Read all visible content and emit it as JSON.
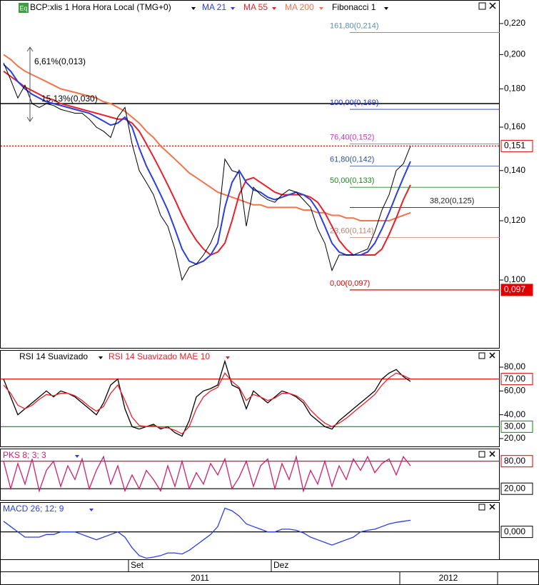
{
  "chart_data": [
    {
      "type": "line",
      "badge": "Eq",
      "title": "BCP:xlis 1 Hora Hora Local (TMG+0)",
      "log": true,
      "categories": [
        null,
        null,
        null,
        null,
        null,
        null,
        null,
        null,
        null,
        null,
        null,
        null,
        null,
        null,
        null,
        null,
        null,
        null,
        "Set",
        null,
        null,
        null,
        null,
        null,
        null,
        null,
        null,
        null,
        null,
        null,
        null,
        null,
        null,
        null,
        null,
        null,
        null,
        null,
        "Dez",
        null,
        null,
        null,
        null,
        null,
        null,
        null,
        null,
        null,
        null,
        null,
        null,
        null,
        null,
        null,
        null,
        null,
        null,
        null
      ],
      "x_groups": [
        "2011",
        "2012"
      ],
      "values": [
        0.195,
        0.185,
        0.175,
        0.182,
        0.172,
        0.17,
        0.172,
        0.171,
        0.169,
        0.168,
        0.167,
        0.167,
        0.164,
        0.16,
        0.158,
        0.155,
        0.165,
        0.17,
        0.152,
        0.14,
        0.135,
        0.13,
        0.122,
        0.118,
        0.11,
        0.1,
        0.104,
        0.105,
        0.108,
        0.112,
        0.118,
        0.145,
        0.14,
        0.139,
        0.118,
        0.133,
        0.13,
        0.128,
        0.127,
        0.13,
        0.132,
        0.131,
        0.128,
        0.125,
        0.117,
        0.112,
        0.103,
        0.108,
        0.108,
        0.108,
        0.109,
        0.11,
        0.116,
        0.124,
        0.13,
        0.14,
        0.143,
        0.151
      ],
      "color": "#000000",
      "series": [
        {
          "name": "MA 21",
          "color": "#2a3fe0",
          "values": [
            0.194,
            0.19,
            0.184,
            0.18,
            0.177,
            0.175,
            0.173,
            0.172,
            0.171,
            0.17,
            0.169,
            0.168,
            0.167,
            0.165,
            0.163,
            0.161,
            0.162,
            0.165,
            0.16,
            0.15,
            0.142,
            0.136,
            0.13,
            0.124,
            0.117,
            0.11,
            0.106,
            0.105,
            0.106,
            0.108,
            0.112,
            0.125,
            0.135,
            0.14,
            0.135,
            0.132,
            0.131,
            0.129,
            0.128,
            0.129,
            0.13,
            0.131,
            0.13,
            0.128,
            0.124,
            0.118,
            0.112,
            0.109,
            0.108,
            0.108,
            0.108,
            0.109,
            0.112,
            0.117,
            0.123,
            0.13,
            0.137,
            0.144
          ]
        },
        {
          "name": "MA 55",
          "color": "#e8202a",
          "values": [
            0.19,
            0.187,
            0.184,
            0.181,
            0.179,
            0.177,
            0.175,
            0.174,
            0.172,
            0.171,
            0.17,
            0.169,
            0.168,
            0.167,
            0.166,
            0.165,
            0.164,
            0.164,
            0.162,
            0.158,
            0.152,
            0.146,
            0.14,
            0.134,
            0.128,
            0.122,
            0.117,
            0.113,
            0.11,
            0.108,
            0.109,
            0.112,
            0.12,
            0.13,
            0.136,
            0.137,
            0.135,
            0.133,
            0.131,
            0.13,
            0.13,
            0.13,
            0.13,
            0.129,
            0.127,
            0.123,
            0.118,
            0.113,
            0.11,
            0.108,
            0.108,
            0.108,
            0.108,
            0.11,
            0.115,
            0.121,
            0.128,
            0.134
          ]
        },
        {
          "name": "MA 200",
          "color": "#f4734a",
          "values": [
            0.2,
            0.197,
            0.193,
            0.19,
            0.188,
            0.186,
            0.184,
            0.182,
            0.18,
            0.179,
            0.178,
            0.177,
            0.176,
            0.175,
            0.173,
            0.172,
            0.17,
            0.168,
            0.165,
            0.162,
            0.158,
            0.155,
            0.151,
            0.148,
            0.145,
            0.142,
            0.139,
            0.137,
            0.135,
            0.133,
            0.131,
            0.13,
            0.129,
            0.128,
            0.127,
            0.126,
            0.126,
            0.125,
            0.125,
            0.125,
            0.125,
            0.125,
            0.124,
            0.124,
            0.123,
            0.123,
            0.122,
            0.122,
            0.121,
            0.121,
            0.12,
            0.12,
            0.12,
            0.12,
            0.12,
            0.121,
            0.122,
            0.123
          ]
        }
      ],
      "fibonacci_name": "Fibonacci 1",
      "fibonacci": [
        {
          "label": "161,80(0,214)",
          "value": 0.214,
          "color": "#5d8fa3"
        },
        {
          "label": "100,00(0,169)",
          "value": 0.169,
          "color": "#1f2fc8"
        },
        {
          "label": "76,40(0,152)",
          "value": 0.152,
          "color": "#d030c8"
        },
        {
          "label": "61,80(0,142)",
          "value": 0.142,
          "color": "#2a50a0"
        },
        {
          "label": "50,00(0,133)",
          "value": 0.133,
          "color": "#1a8a1a"
        },
        {
          "label": "38,20(0,125)",
          "value": 0.125,
          "color": "#222222"
        },
        {
          "label": "23,60(0,114)",
          "value": 0.114,
          "color": "#c08070"
        },
        {
          "label": "0,00(0,097)",
          "value": 0.097,
          "color": "#e00000"
        }
      ],
      "annotations": [
        "6,61%(0,013)",
        "15,13%(0,030)"
      ],
      "hlines": [
        0.172
      ],
      "markers": [
        {
          "value": 0.151,
          "label": "0,151",
          "color": "#e00000"
        },
        {
          "value": 0.097,
          "label": "0,097",
          "color": "#e00000"
        }
      ],
      "ylim": [
        0.081,
        0.236
      ],
      "yticks": [
        {
          "value": 0.1,
          "label": "0,100"
        },
        {
          "value": 0.12,
          "label": "0,120"
        },
        {
          "value": 0.14,
          "label": "0,140"
        },
        {
          "value": 0.16,
          "label": "0,160"
        },
        {
          "value": 0.18,
          "label": "0,180"
        },
        {
          "value": 0.2,
          "label": "0,200"
        },
        {
          "value": 0.22,
          "label": "0,220"
        }
      ]
    },
    {
      "type": "line",
      "series": [
        {
          "name": "RSI 14 Suavizado",
          "color": "#000000",
          "values": [
            70,
            55,
            40,
            45,
            50,
            55,
            60,
            55,
            60,
            58,
            55,
            50,
            45,
            40,
            50,
            65,
            70,
            45,
            30,
            28,
            30,
            32,
            28,
            30,
            25,
            22,
            35,
            55,
            60,
            62,
            65,
            85,
            65,
            62,
            45,
            60,
            55,
            50,
            55,
            60,
            58,
            55,
            50,
            40,
            35,
            30,
            28,
            35,
            40,
            45,
            50,
            55,
            60,
            70,
            75,
            78,
            72,
            68
          ]
        },
        {
          "name": "RSI 14 Suavizado MAE 10",
          "color": "#e8202a",
          "values": [
            65,
            58,
            48,
            45,
            48,
            53,
            57,
            56,
            58,
            58,
            56,
            52,
            47,
            43,
            47,
            58,
            65,
            52,
            38,
            31,
            30,
            31,
            29,
            29,
            27,
            24,
            30,
            45,
            55,
            60,
            63,
            75,
            68,
            63,
            52,
            57,
            55,
            52,
            54,
            58,
            58,
            56,
            52,
            44,
            38,
            33,
            30,
            33,
            37,
            42,
            47,
            52,
            57,
            65,
            71,
            75,
            73,
            70
          ]
        }
      ],
      "levels": [
        {
          "value": 70,
          "label": "70,00",
          "color": "#d00000"
        },
        {
          "value": 30,
          "label": "30,00",
          "color": "#0a8a0a"
        }
      ],
      "ylim": [
        13.4,
        93.8
      ],
      "yticks": [
        {
          "value": 20,
          "label": "20,00"
        },
        {
          "value": 40,
          "label": "40,00"
        },
        {
          "value": 60,
          "label": "60,00"
        },
        {
          "value": 80,
          "label": "80,00"
        }
      ]
    },
    {
      "type": "line",
      "series": [
        {
          "name": "PKS 8; 3; 3",
          "color": "#d0206a",
          "values": [
            80,
            20,
            75,
            30,
            85,
            15,
            60,
            80,
            25,
            70,
            40,
            85,
            20,
            60,
            90,
            30,
            70,
            15,
            50,
            20,
            60,
            40,
            15,
            70,
            25,
            80,
            20,
            55,
            30,
            75,
            50,
            85,
            20,
            45,
            80,
            25,
            70,
            85,
            20,
            75,
            40,
            90,
            15,
            60,
            30,
            80,
            25,
            70,
            40,
            85,
            60,
            90,
            55,
            75,
            85,
            50,
            90,
            70
          ]
        }
      ],
      "levels": [
        {
          "value": 80,
          "label": "80,00",
          "color": "#d00000"
        },
        {
          "value": 20,
          "label": "20,00",
          "color": "#000000"
        }
      ],
      "ylim": [
        -4.6,
        106
      ]
    },
    {
      "type": "line",
      "series": [
        {
          "name": "MACD 26; 12; 9",
          "color": "#2a3fe0",
          "values": [
            0.002,
            0.001,
            0,
            -0.001,
            -0.001,
            -0.001,
            -0.0005,
            -0.0005,
            0,
            0,
            0,
            -0.0005,
            -0.001,
            -0.0015,
            -0.001,
            -0.0005,
            0,
            -0.001,
            -0.003,
            -0.0045,
            -0.005,
            -0.0048,
            -0.0045,
            -0.004,
            -0.004,
            -0.0042,
            -0.0035,
            -0.0025,
            -0.0015,
            -0.0005,
            0.001,
            0.0045,
            0.004,
            0.003,
            0.0015,
            0.001,
            0.0005,
            0,
            0,
            0.0005,
            0.0005,
            0.0003,
            -0.0002,
            -0.001,
            -0.0015,
            -0.002,
            -0.0025,
            -0.002,
            -0.0015,
            -0.001,
            0,
            0.0003,
            0.0005,
            0.001,
            0.0015,
            0.0018,
            0.002,
            0.0022
          ]
        }
      ],
      "levels": [
        {
          "value": 0,
          "label": "0,000",
          "color": "#000000"
        }
      ],
      "ylim": [
        -0.0052,
        0.0055
      ]
    }
  ]
}
